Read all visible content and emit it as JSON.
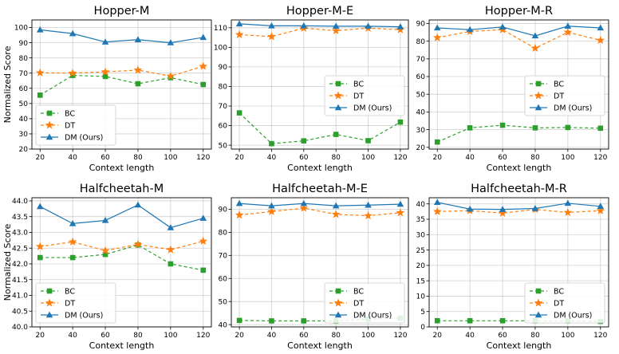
{
  "figure": {
    "ylabel": "Normalized Score",
    "xlabel": "Context length"
  },
  "legend_entries": [
    "BC",
    "DT",
    "DM (Ours)"
  ],
  "colors": {
    "BC": "#2ca02c",
    "DT": "#ff7f0e",
    "DM (Ours)": "#1f77b4"
  },
  "chart_data": [
    {
      "type": "line",
      "title": "Hopper-M",
      "xlabel": "Context length",
      "ylabel": "Normalized Score",
      "x": [
        20,
        40,
        60,
        80,
        100,
        120
      ],
      "xticks": [
        20,
        40,
        60,
        80,
        100,
        120
      ],
      "ylim": [
        20,
        105
      ],
      "yticks": [
        20,
        30,
        40,
        50,
        60,
        70,
        80,
        90,
        100
      ],
      "legend": "lower-left",
      "grid": true,
      "series": [
        {
          "name": "BC",
          "values": [
            55.5,
            68.5,
            67.8,
            63.0,
            67.0,
            62.5
          ]
        },
        {
          "name": "DT",
          "values": [
            70.2,
            70.0,
            70.8,
            72.0,
            68.0,
            74.5
          ]
        },
        {
          "name": "DM (Ours)",
          "values": [
            98.5,
            96.0,
            90.5,
            92.0,
            90.0,
            93.5
          ]
        }
      ]
    },
    {
      "type": "line",
      "title": "Hopper-M-E",
      "xlabel": "Context length",
      "ylabel": "",
      "x": [
        20,
        40,
        60,
        80,
        100,
        120
      ],
      "xticks": [
        20,
        40,
        60,
        80,
        100,
        120
      ],
      "ylim": [
        48,
        114
      ],
      "yticks": [
        50,
        60,
        70,
        80,
        90,
        100,
        110
      ],
      "legend": "center-right",
      "grid": true,
      "series": [
        {
          "name": "BC",
          "values": [
            66.5,
            50.8,
            52.2,
            55.5,
            52.3,
            61.8
          ]
        },
        {
          "name": "DT",
          "values": [
            106.5,
            105.5,
            109.8,
            108.5,
            109.8,
            109.0
          ]
        },
        {
          "name": "DM (Ours)",
          "values": [
            112.0,
            111.0,
            111.0,
            110.8,
            110.8,
            110.5
          ]
        }
      ]
    },
    {
      "type": "line",
      "title": "Hopper-M-R",
      "xlabel": "Context length",
      "ylabel": "",
      "x": [
        20,
        40,
        60,
        80,
        100,
        120
      ],
      "xticks": [
        20,
        40,
        60,
        80,
        100,
        120
      ],
      "ylim": [
        19,
        92
      ],
      "yticks": [
        20,
        30,
        40,
        50,
        60,
        70,
        80,
        90
      ],
      "legend": "center-right",
      "grid": true,
      "series": [
        {
          "name": "BC",
          "values": [
            23.0,
            31.0,
            32.5,
            31.0,
            31.2,
            30.8
          ]
        },
        {
          "name": "DT",
          "values": [
            82.0,
            85.5,
            86.5,
            76.0,
            85.0,
            80.5
          ]
        },
        {
          "name": "DM (Ours)",
          "values": [
            87.5,
            86.5,
            88.0,
            83.0,
            88.5,
            87.5
          ]
        }
      ]
    },
    {
      "type": "line",
      "title": "Halfcheetah-M",
      "xlabel": "Context length",
      "ylabel": "Normalized Score",
      "x": [
        20,
        40,
        60,
        80,
        100,
        120
      ],
      "xticks": [
        20,
        40,
        60,
        80,
        100,
        120
      ],
      "ylim": [
        40.0,
        44.1
      ],
      "yticks": [
        40.0,
        40.5,
        41.0,
        41.5,
        42.0,
        42.5,
        43.0,
        43.5,
        44.0
      ],
      "legend": "lower-left",
      "grid": true,
      "series": [
        {
          "name": "BC",
          "values": [
            42.2,
            42.2,
            42.3,
            42.6,
            42.0,
            41.8
          ]
        },
        {
          "name": "DT",
          "values": [
            42.55,
            42.7,
            42.42,
            42.62,
            42.45,
            42.72
          ]
        },
        {
          "name": "DM (Ours)",
          "values": [
            43.82,
            43.28,
            43.38,
            43.87,
            43.15,
            43.45
          ]
        }
      ]
    },
    {
      "type": "line",
      "title": "Halfcheetah-M-E",
      "xlabel": "Context length",
      "ylabel": "",
      "x": [
        20,
        40,
        60,
        80,
        100,
        120
      ],
      "xticks": [
        20,
        40,
        60,
        80,
        100,
        120
      ],
      "ylim": [
        39,
        95
      ],
      "yticks": [
        40,
        50,
        60,
        70,
        80,
        90
      ],
      "legend": "lower-right",
      "grid": true,
      "series": [
        {
          "name": "BC",
          "values": [
            41.8,
            41.6,
            41.6,
            41.6,
            42.4,
            42.8
          ]
        },
        {
          "name": "DT",
          "values": [
            87.5,
            89.0,
            90.5,
            87.8,
            87.2,
            88.5
          ]
        },
        {
          "name": "DM (Ours)",
          "values": [
            92.5,
            91.5,
            92.5,
            91.5,
            91.8,
            92.2
          ]
        }
      ]
    },
    {
      "type": "line",
      "title": "Halfcheetah-M-R",
      "xlabel": "Context length",
      "ylabel": "",
      "x": [
        20,
        40,
        60,
        80,
        100,
        120
      ],
      "xticks": [
        20,
        40,
        60,
        80,
        100,
        120
      ],
      "ylim": [
        0,
        42
      ],
      "yticks": [
        0,
        5,
        10,
        15,
        20,
        25,
        30,
        35,
        40
      ],
      "legend": "lower-right",
      "grid": true,
      "series": [
        {
          "name": "BC",
          "values": [
            2.0,
            2.0,
            2.0,
            2.0,
            2.0,
            1.8
          ]
        },
        {
          "name": "DT",
          "values": [
            37.5,
            37.8,
            37.0,
            38.2,
            37.2,
            37.8
          ]
        },
        {
          "name": "DM (Ours)",
          "values": [
            40.5,
            38.3,
            38.2,
            38.5,
            40.2,
            39.2
          ]
        }
      ]
    }
  ]
}
